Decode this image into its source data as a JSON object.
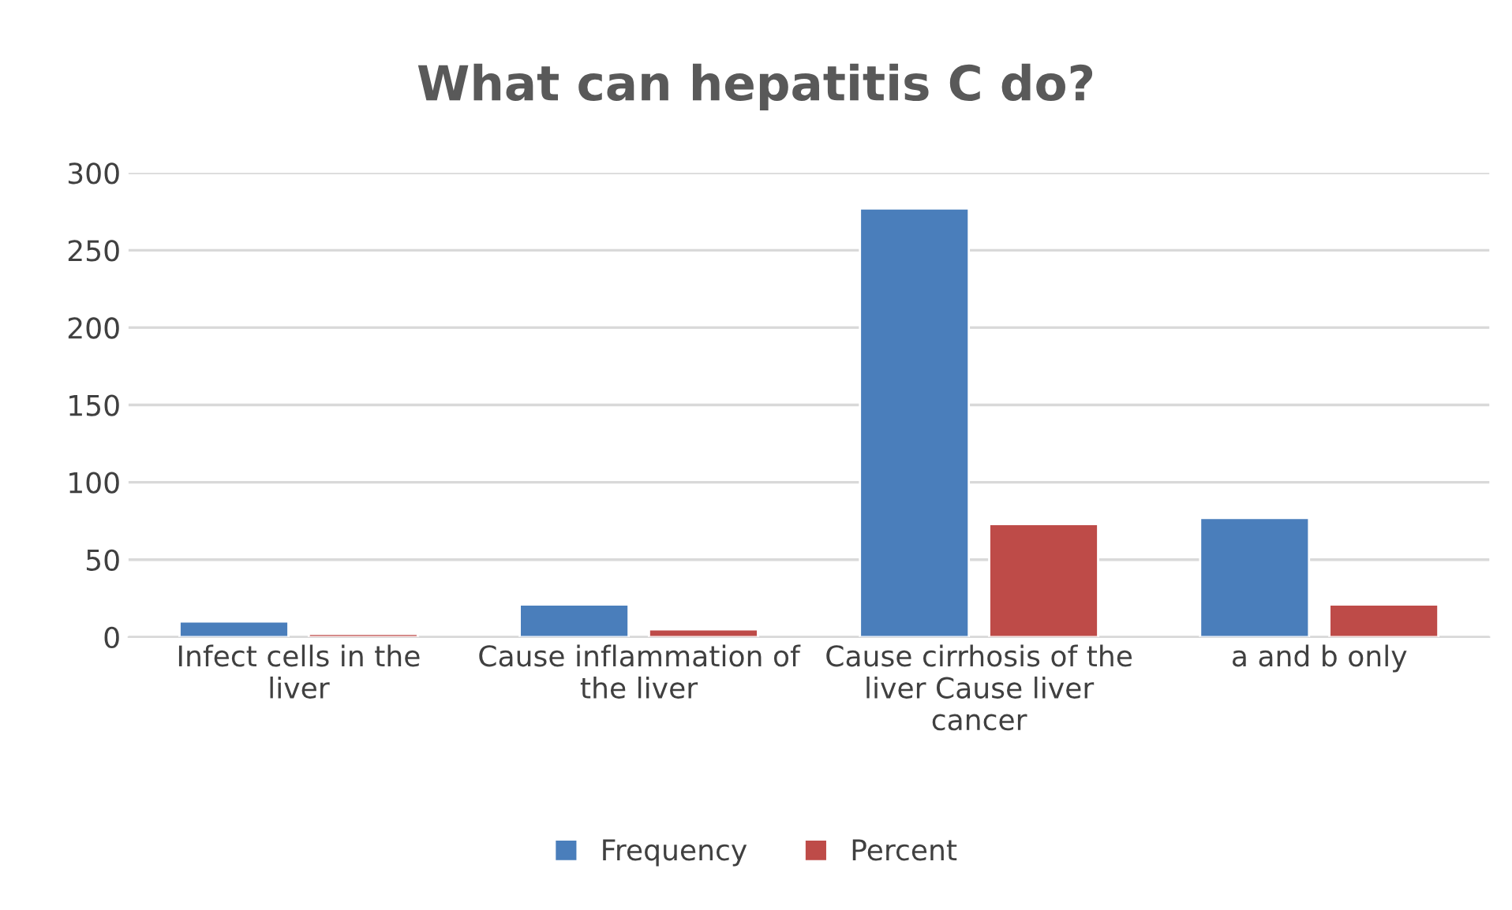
{
  "chart_data": {
    "type": "bar",
    "title": "What can hepatitis C do?",
    "categories": [
      "Infect cells in the liver",
      "Cause inflammation of the liver",
      "Cause cirrhosis of the liver Cause liver cancer",
      "a and b only"
    ],
    "series": [
      {
        "name": "Frequency",
        "color": "#4a7ebb",
        "values": [
          10,
          21,
          277,
          77
        ]
      },
      {
        "name": "Percent",
        "color": "#be4b48",
        "values": [
          2,
          5,
          73,
          21
        ]
      }
    ],
    "ylim": [
      0,
      300
    ],
    "yticks": [
      0,
      50,
      100,
      150,
      200,
      250,
      300
    ],
    "grid": "y",
    "legend": "bottom"
  }
}
